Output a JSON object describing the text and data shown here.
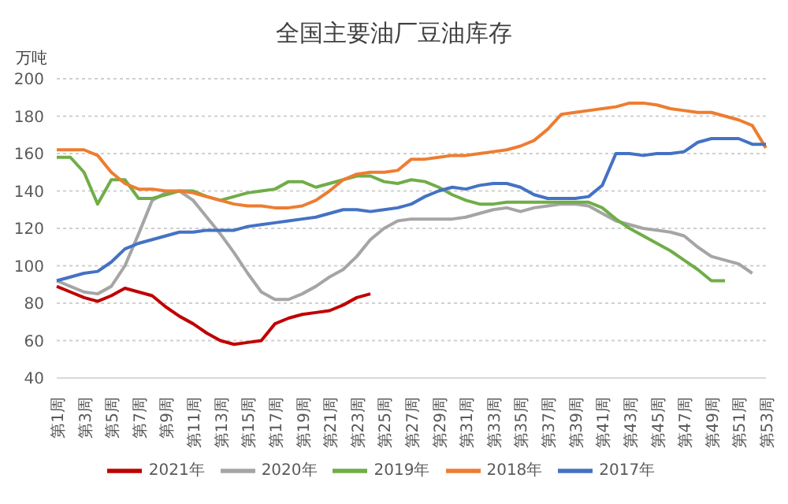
{
  "chart_data": {
    "type": "line",
    "title": "全国主要油厂豆油库存",
    "ylabel": "万吨",
    "categories": [
      "第1周",
      null,
      "第3周",
      null,
      "第5周",
      null,
      "第7周",
      null,
      "第9周",
      null,
      "第11周",
      null,
      "第13周",
      null,
      "第15周",
      null,
      "第17周",
      null,
      "第19周",
      null,
      "第21周",
      null,
      "第23周",
      null,
      "第25周",
      null,
      "第27周",
      null,
      "第29周",
      null,
      "第31周",
      null,
      "第33周",
      null,
      "第35周",
      null,
      "第37周",
      null,
      "第39周",
      null,
      "第41周",
      null,
      "第43周",
      null,
      "第45周",
      null,
      "第47周",
      null,
      "第49周",
      null,
      "第51周",
      null,
      "第53周"
    ],
    "series": [
      {
        "name": "2021年",
        "color": "#c00000",
        "values": [
          89,
          86,
          83,
          81,
          84,
          88,
          86,
          84,
          78,
          73,
          69,
          64,
          60,
          58,
          59,
          60,
          69,
          72,
          74,
          75,
          76,
          79,
          83,
          85,
          null,
          null,
          null,
          null,
          null,
          null,
          null,
          null,
          null,
          null,
          null,
          null,
          null,
          null,
          null,
          null,
          null,
          null,
          null,
          null,
          null,
          null,
          null,
          null,
          null,
          null,
          null,
          null,
          null
        ]
      },
      {
        "name": "2020年",
        "color": "#a5a5a5",
        "values": [
          92,
          89,
          86,
          85,
          89,
          100,
          117,
          135,
          139,
          140,
          135,
          126,
          117,
          107,
          96,
          86,
          82,
          82,
          85,
          89,
          94,
          98,
          105,
          114,
          120,
          124,
          125,
          125,
          125,
          125,
          126,
          128,
          130,
          131,
          129,
          131,
          132,
          133,
          133,
          132,
          128,
          124,
          122,
          120,
          119,
          118,
          116,
          110,
          105,
          103,
          101,
          96,
          null
        ]
      },
      {
        "name": "2019年",
        "color": "#70ad47",
        "values": [
          158,
          158,
          150,
          133,
          146,
          146,
          136,
          136,
          138,
          140,
          140,
          137,
          135,
          137,
          139,
          140,
          141,
          145,
          145,
          142,
          144,
          146,
          148,
          148,
          145,
          144,
          146,
          145,
          142,
          138,
          135,
          133,
          133,
          134,
          134,
          134,
          134,
          134,
          134,
          134,
          131,
          125,
          120,
          116,
          112,
          108,
          103,
          98,
          92,
          92,
          null,
          null,
          null
        ]
      },
      {
        "name": "2018年",
        "color": "#ed7d31",
        "values": [
          162,
          162,
          162,
          159,
          150,
          144,
          141,
          141,
          140,
          140,
          139,
          137,
          135,
          133,
          132,
          132,
          131,
          131,
          132,
          135,
          140,
          146,
          149,
          150,
          150,
          151,
          157,
          157,
          158,
          159,
          159,
          160,
          161,
          162,
          164,
          167,
          173,
          181,
          182,
          183,
          184,
          185,
          187,
          187,
          186,
          184,
          183,
          182,
          182,
          180,
          178,
          175,
          163
        ]
      },
      {
        "name": "2017年",
        "color": "#4472c4",
        "values": [
          92,
          94,
          96,
          97,
          102,
          109,
          112,
          114,
          116,
          118,
          118,
          119,
          119,
          119,
          121,
          122,
          123,
          124,
          125,
          126,
          128,
          130,
          130,
          129,
          130,
          131,
          133,
          137,
          140,
          142,
          141,
          143,
          144,
          144,
          142,
          138,
          136,
          136,
          136,
          137,
          143,
          160,
          160,
          159,
          160,
          160,
          161,
          166,
          168,
          168,
          168,
          165,
          165
        ]
      }
    ],
    "ylim": [
      40,
      200
    ],
    "yticks": [
      40,
      60,
      80,
      100,
      120,
      140,
      160,
      180,
      200
    ],
    "grid": "y",
    "legend": "bottom",
    "line_style": "solid"
  }
}
